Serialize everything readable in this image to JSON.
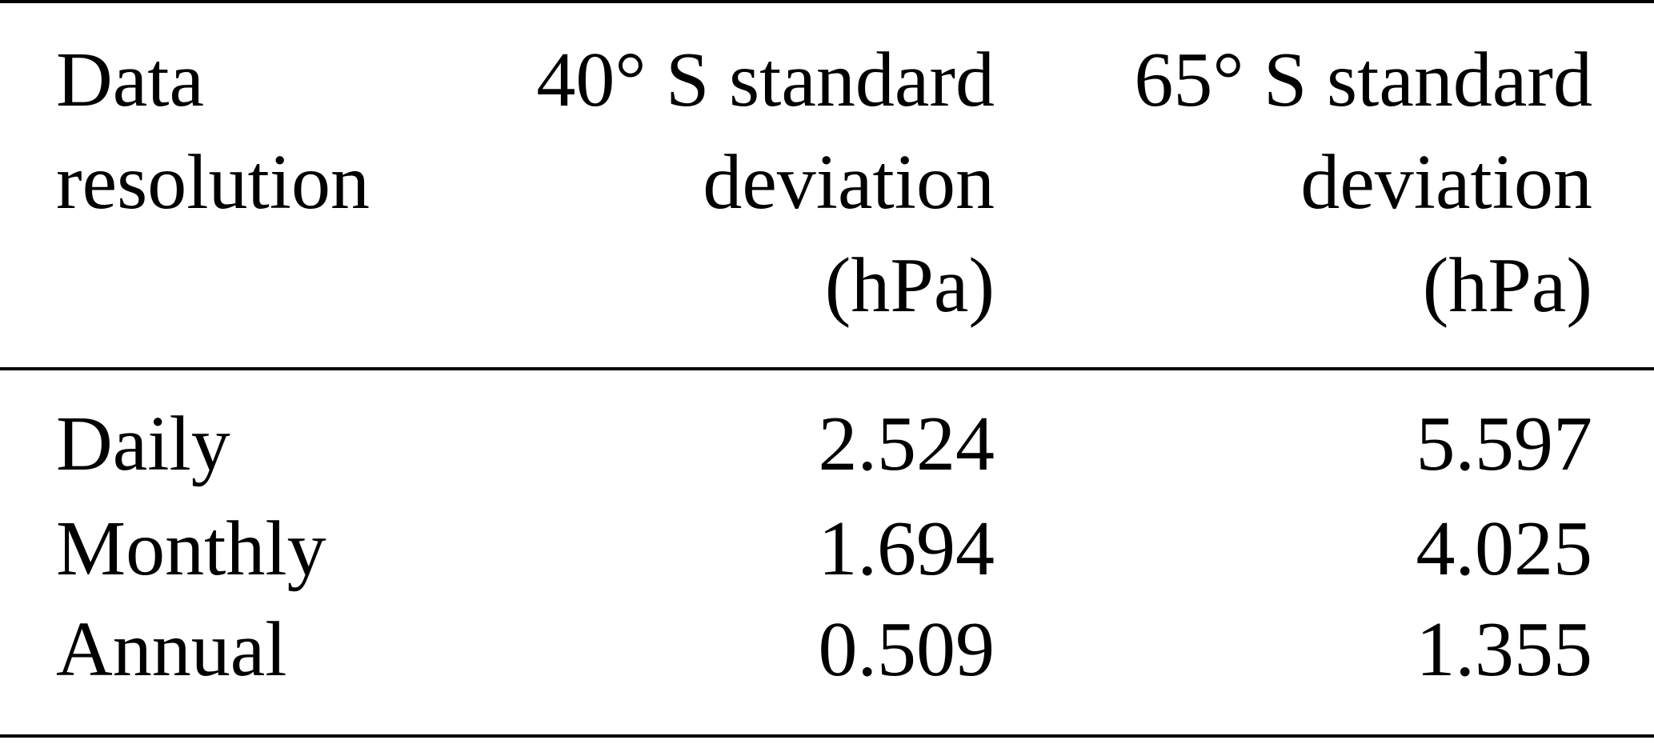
{
  "table": {
    "header": [
      [
        "Data",
        "resolution"
      ],
      [
        "40° S standard",
        "deviation",
        "(hPa)"
      ],
      [
        "65° S standard",
        "deviation",
        "(hPa)"
      ]
    ],
    "rows": [
      [
        "Daily",
        2.524,
        5.597
      ],
      [
        "Monthly",
        1.694,
        4.025
      ],
      [
        "Annual",
        0.509,
        1.355
      ]
    ]
  }
}
